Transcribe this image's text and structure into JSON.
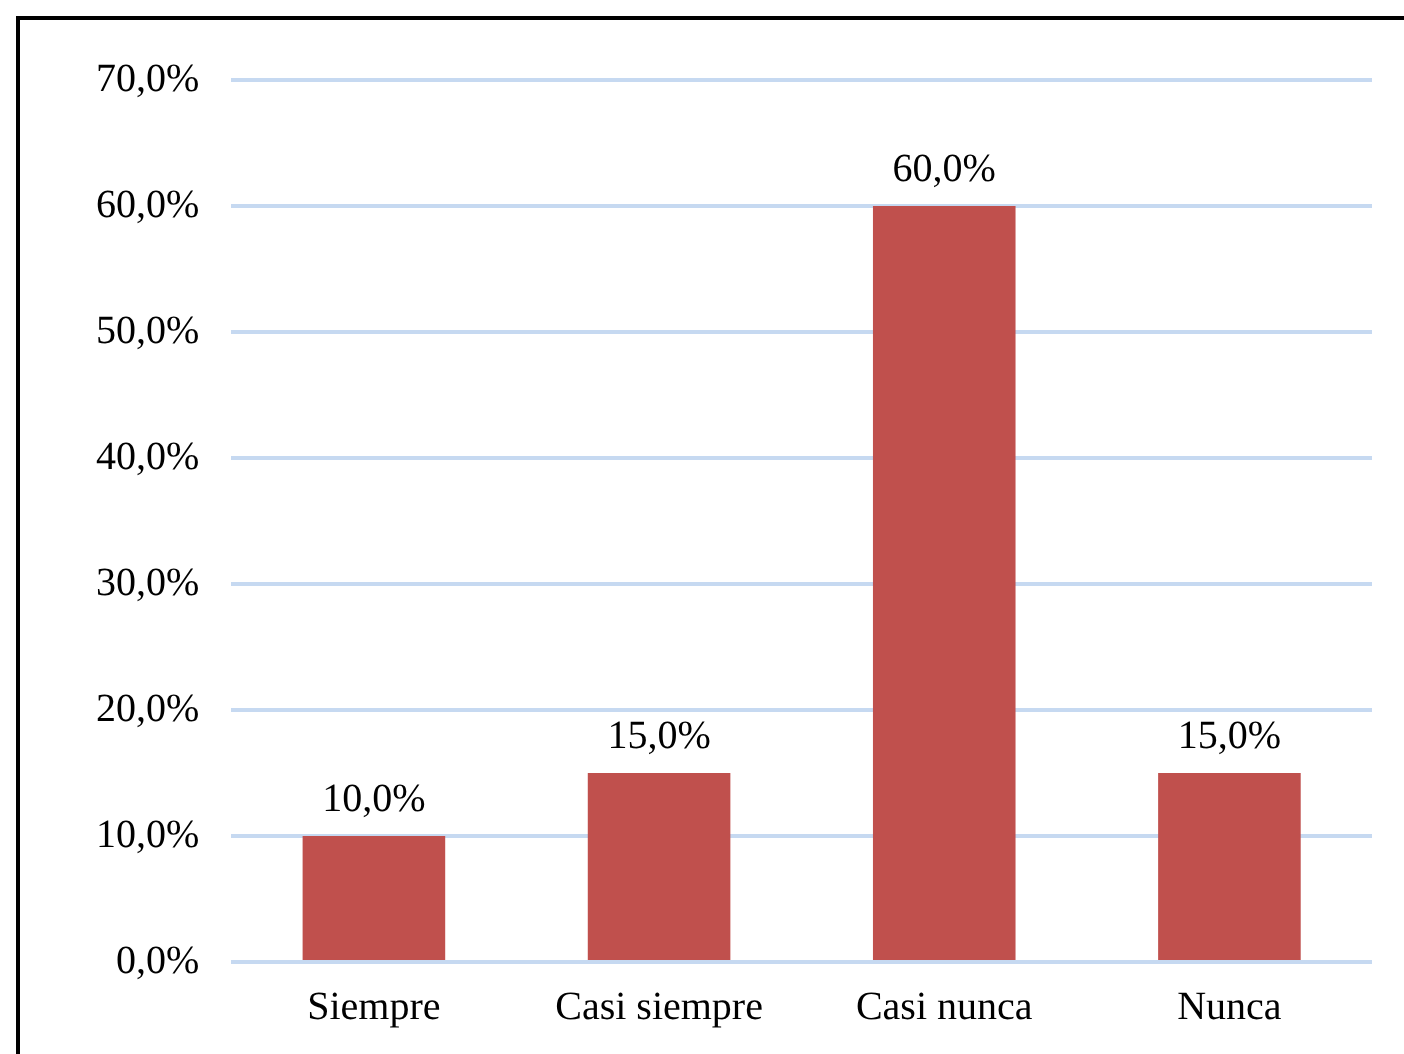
{
  "chart_data": {
    "type": "bar",
    "categories": [
      "Siempre",
      "Casi siempre",
      "Casi nunca",
      "Nunca"
    ],
    "values": [
      10,
      15,
      60,
      15
    ],
    "value_labels": [
      "10,0%",
      "15,0%",
      "60,0%",
      "15,0%"
    ],
    "color": "#c0504d",
    "ylim": [
      0,
      70
    ],
    "yticks": [
      {
        "value": 0,
        "label": "0,0%"
      },
      {
        "value": 10,
        "label": "10,0%"
      },
      {
        "value": 20,
        "label": "20,0%"
      },
      {
        "value": 30,
        "label": "30,0%"
      },
      {
        "value": 40,
        "label": "40,0%"
      },
      {
        "value": 50,
        "label": "50,0%"
      },
      {
        "value": 60,
        "label": "60,0%"
      },
      {
        "value": 70,
        "label": "70,0%"
      }
    ],
    "grid": "y",
    "legend": false
  }
}
